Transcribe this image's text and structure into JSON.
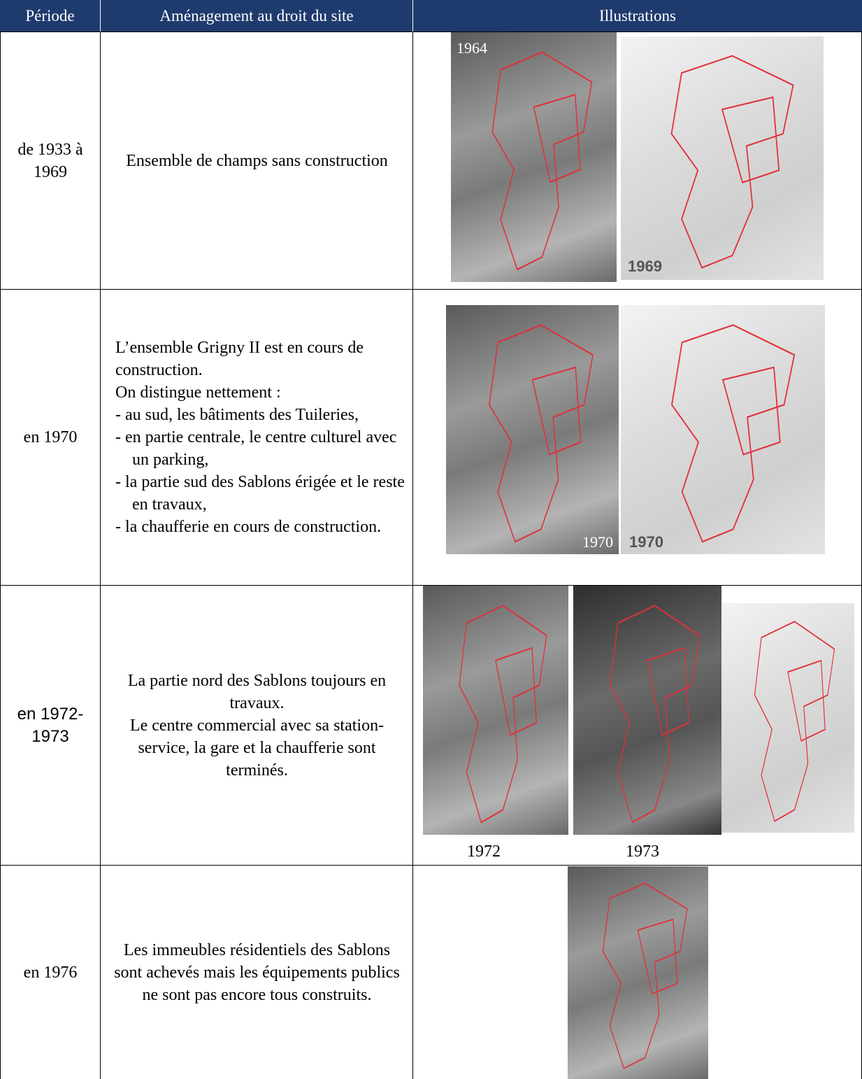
{
  "table": {
    "header": [
      "Période",
      "Aménagement au droit du site",
      "Illustrations"
    ],
    "rows": [
      {
        "period": "de 1933 à 1969",
        "description": [
          "Ensemble de champs sans construction"
        ],
        "image_labels": [
          "1964",
          "1969"
        ]
      },
      {
        "period": "en 1970",
        "description": [
          "L’ensemble Grigny II est en cours de construction.",
          "On distingue nettement :",
          "- au sud, les bâtiments des Tuileries,",
          "- en partie centrale, le centre culturel avec un parking,",
          "- la partie sud des Sablons érigée et le reste en travaux,",
          "- la chaufferie en cours de construction."
        ],
        "image_labels": [
          "1970",
          "1970"
        ]
      },
      {
        "period": "en 1972-1973",
        "description": [
          "La partie nord des Sablons toujours en travaux.",
          "Le centre commercial avec sa station-service, la gare et la chaufferie sont terminés."
        ],
        "image_labels": [
          "1972",
          "1973"
        ]
      },
      {
        "period": "en 1976",
        "description": [
          "Les immeubles résidentiels des Sablons sont achevés mais les équipements publics ne sont pas encore tous construits."
        ],
        "image_labels": []
      }
    ]
  }
}
